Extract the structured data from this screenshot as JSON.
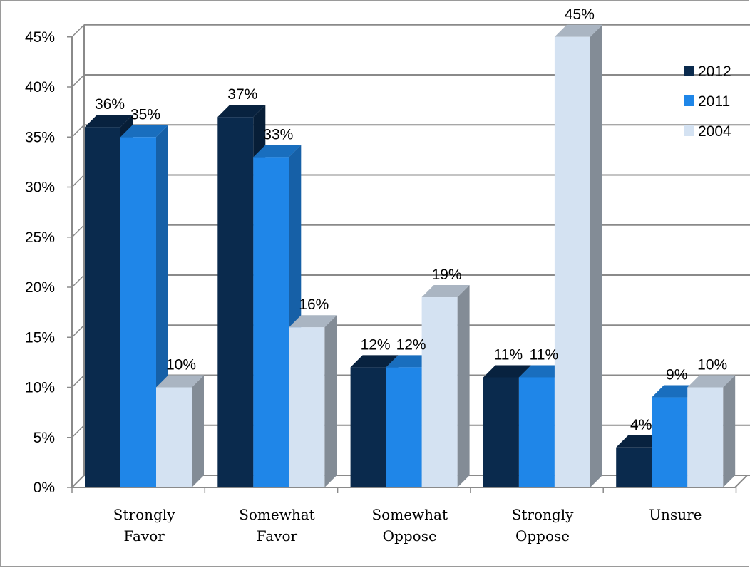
{
  "chart_data": {
    "type": "bar",
    "title": "",
    "xlabel": "",
    "ylabel": "",
    "categories": [
      [
        "Strongly",
        "Favor"
      ],
      [
        "Somewhat",
        "Favor"
      ],
      [
        "Somewhat",
        "Oppose"
      ],
      [
        "Strongly",
        "Oppose"
      ],
      [
        "Unsure"
      ]
    ],
    "series": [
      {
        "name": "2012",
        "color": "#0a2a4d",
        "values": [
          36,
          37,
          12,
          11,
          4
        ]
      },
      {
        "name": "2011",
        "color": "#1f86e8",
        "values": [
          35,
          33,
          12,
          11,
          9
        ]
      },
      {
        "name": "2004",
        "color": "#d4e2f2",
        "values": [
          10,
          16,
          19,
          45,
          10
        ]
      }
    ],
    "data_labels": [
      [
        "36%",
        "37%",
        "12%",
        "11%",
        "4%"
      ],
      [
        "35%",
        "33%",
        "12%",
        "11%",
        "9%"
      ],
      [
        "10%",
        "16%",
        "19%",
        "45%",
        "10%"
      ]
    ],
    "yticks": [
      0,
      5,
      10,
      15,
      20,
      25,
      30,
      35,
      40,
      45
    ],
    "ytick_labels": [
      "0%",
      "5%",
      "10%",
      "15%",
      "20%",
      "25%",
      "30%",
      "35%",
      "40%",
      "45%"
    ],
    "ylim": [
      0,
      45
    ],
    "grid": true,
    "legend_position": "top-right",
    "three_d": true
  }
}
